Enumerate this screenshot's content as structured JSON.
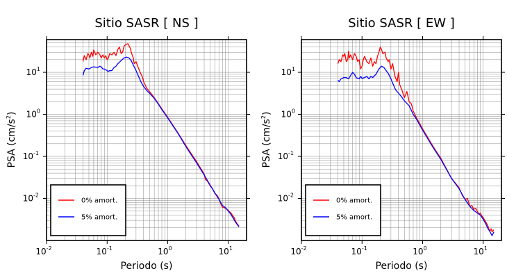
{
  "chart_data": [
    {
      "type": "line",
      "title": "Sitio SASR [ NS ]",
      "xlabel": "Periodo (s)",
      "ylabel": "PSA (cm/s2)",
      "x_scale": "log",
      "y_scale": "log",
      "xlim": [
        0.01,
        20
      ],
      "ylim": [
        0.001,
        60
      ],
      "xticks": [
        0.01,
        0.1,
        1,
        10
      ],
      "yticks": [
        0.01,
        0.1,
        1,
        10
      ],
      "grid": true,
      "legend_position": "lower-left",
      "series": [
        {
          "name": "0% amort.",
          "color": "#ff0000",
          "points": [
            [
              0.04,
              18
            ],
            [
              0.042,
              25
            ],
            [
              0.045,
              20
            ],
            [
              0.048,
              28
            ],
            [
              0.05,
              26
            ],
            [
              0.052,
              22
            ],
            [
              0.055,
              30
            ],
            [
              0.058,
              24
            ],
            [
              0.06,
              34
            ],
            [
              0.065,
              26
            ],
            [
              0.07,
              30
            ],
            [
              0.075,
              27
            ],
            [
              0.08,
              22
            ],
            [
              0.085,
              26
            ],
            [
              0.09,
              22
            ],
            [
              0.095,
              25
            ],
            [
              0.1,
              20
            ],
            [
              0.105,
              22
            ],
            [
              0.11,
              28
            ],
            [
              0.12,
              26
            ],
            [
              0.13,
              30
            ],
            [
              0.14,
              25
            ],
            [
              0.15,
              35
            ],
            [
              0.16,
              40
            ],
            [
              0.17,
              28
            ],
            [
              0.18,
              30
            ],
            [
              0.19,
              42
            ],
            [
              0.2,
              45
            ],
            [
              0.22,
              48
            ],
            [
              0.24,
              38
            ],
            [
              0.25,
              30
            ],
            [
              0.27,
              22
            ],
            [
              0.28,
              16
            ],
            [
              0.3,
              18
            ],
            [
              0.32,
              14
            ],
            [
              0.35,
              10
            ],
            [
              0.38,
              8
            ],
            [
              0.4,
              6
            ],
            [
              0.45,
              4.2
            ],
            [
              0.5,
              3.5
            ],
            [
              0.6,
              2.5
            ],
            [
              0.7,
              1.8
            ],
            [
              0.8,
              1.35
            ],
            [
              1.0,
              0.85
            ],
            [
              1.5,
              0.35
            ],
            [
              2.0,
              0.18
            ],
            [
              3.0,
              0.075
            ],
            [
              4.0,
              0.038
            ],
            [
              4.2,
              0.028
            ],
            [
              4.5,
              0.026
            ],
            [
              5.0,
              0.02
            ],
            [
              5.5,
              0.017
            ],
            [
              6.0,
              0.013
            ],
            [
              6.5,
              0.012
            ],
            [
              7.0,
              0.01
            ],
            [
              7.5,
              0.0075
            ],
            [
              8.0,
              0.0062
            ],
            [
              8.5,
              0.006
            ],
            [
              9.0,
              0.0058
            ],
            [
              9.5,
              0.0055
            ],
            [
              10,
              0.0052
            ],
            [
              11,
              0.0045
            ],
            [
              12,
              0.0038
            ],
            [
              12.5,
              0.0035
            ],
            [
              13,
              0.003
            ],
            [
              14,
              0.0025
            ],
            [
              15,
              0.0022
            ]
          ]
        },
        {
          "name": "5% amort.",
          "color": "#0000ff",
          "points": [
            [
              0.04,
              8.5
            ],
            [
              0.042,
              11
            ],
            [
              0.045,
              12.5
            ],
            [
              0.05,
              12
            ],
            [
              0.055,
              13
            ],
            [
              0.06,
              13.5
            ],
            [
              0.07,
              13
            ],
            [
              0.075,
              14
            ],
            [
              0.08,
              13.5
            ],
            [
              0.085,
              12
            ],
            [
              0.09,
              12
            ],
            [
              0.1,
              11
            ],
            [
              0.105,
              10.5
            ],
            [
              0.11,
              11
            ],
            [
              0.12,
              11
            ],
            [
              0.13,
              13
            ],
            [
              0.14,
              14
            ],
            [
              0.15,
              16
            ],
            [
              0.17,
              19
            ],
            [
              0.19,
              22
            ],
            [
              0.21,
              23
            ],
            [
              0.23,
              22
            ],
            [
              0.25,
              19
            ],
            [
              0.27,
              15
            ],
            [
              0.3,
              11
            ],
            [
              0.33,
              8
            ],
            [
              0.36,
              6
            ],
            [
              0.4,
              4.6
            ],
            [
              0.45,
              3.7
            ],
            [
              0.5,
              3.2
            ],
            [
              0.6,
              2.4
            ],
            [
              0.7,
              1.75
            ],
            [
              0.8,
              1.3
            ],
            [
              1.0,
              0.82
            ],
            [
              1.5,
              0.34
            ],
            [
              2.0,
              0.17
            ],
            [
              3.0,
              0.07
            ],
            [
              4.0,
              0.036
            ],
            [
              5.0,
              0.021
            ],
            [
              6.0,
              0.0135
            ],
            [
              7.0,
              0.0095
            ],
            [
              8.0,
              0.0068
            ],
            [
              9.0,
              0.006
            ],
            [
              10,
              0.005
            ],
            [
              11,
              0.0042
            ],
            [
              12,
              0.0034
            ],
            [
              13,
              0.0028
            ],
            [
              14,
              0.0024
            ],
            [
              15,
              0.0021
            ]
          ]
        }
      ]
    },
    {
      "type": "line",
      "title": "Sitio SASR [ EW ]",
      "xlabel": "Periodo (s)",
      "ylabel": "PSA (cm/s2)",
      "x_scale": "log",
      "y_scale": "log",
      "xlim": [
        0.01,
        20
      ],
      "ylim": [
        0.001,
        60
      ],
      "xticks": [
        0.01,
        0.1,
        1,
        10
      ],
      "yticks": [
        0.01,
        0.1,
        1,
        10
      ],
      "grid": true,
      "legend_position": "lower-left",
      "series": [
        {
          "name": "0% amort.",
          "color": "#ff0000",
          "points": [
            [
              0.04,
              16
            ],
            [
              0.042,
              20
            ],
            [
              0.045,
              18
            ],
            [
              0.048,
              26
            ],
            [
              0.05,
              24
            ],
            [
              0.052,
              28
            ],
            [
              0.055,
              18
            ],
            [
              0.058,
              20
            ],
            [
              0.06,
              32
            ],
            [
              0.062,
              22
            ],
            [
              0.065,
              26
            ],
            [
              0.07,
              20
            ],
            [
              0.075,
              28
            ],
            [
              0.08,
              24
            ],
            [
              0.085,
              18
            ],
            [
              0.09,
              20
            ],
            [
              0.095,
              12
            ],
            [
              0.1,
              14
            ],
            [
              0.105,
              20
            ],
            [
              0.11,
              24
            ],
            [
              0.12,
              18
            ],
            [
              0.13,
              16
            ],
            [
              0.14,
              22
            ],
            [
              0.15,
              14
            ],
            [
              0.16,
              18
            ],
            [
              0.17,
              16
            ],
            [
              0.18,
              24
            ],
            [
              0.19,
              30
            ],
            [
              0.2,
              40
            ],
            [
              0.21,
              35
            ],
            [
              0.22,
              28
            ],
            [
              0.24,
              30
            ],
            [
              0.25,
              22
            ],
            [
              0.27,
              18
            ],
            [
              0.28,
              20
            ],
            [
              0.3,
              12
            ],
            [
              0.32,
              16
            ],
            [
              0.35,
              8
            ],
            [
              0.38,
              6
            ],
            [
              0.4,
              10
            ],
            [
              0.42,
              5
            ],
            [
              0.45,
              4
            ],
            [
              0.5,
              2.5
            ],
            [
              0.55,
              3.5
            ],
            [
              0.6,
              2
            ],
            [
              0.65,
              1.8
            ],
            [
              0.7,
              1.2
            ],
            [
              0.8,
              0.8
            ],
            [
              0.9,
              0.6
            ],
            [
              1.0,
              0.45
            ],
            [
              1.5,
              0.17
            ],
            [
              2.0,
              0.09
            ],
            [
              3.0,
              0.03
            ],
            [
              4.0,
              0.018
            ],
            [
              4.5,
              0.012
            ],
            [
              5.0,
              0.0095
            ],
            [
              5.5,
              0.01
            ],
            [
              6.0,
              0.0065
            ],
            [
              6.5,
              0.0068
            ],
            [
              7.0,
              0.0055
            ],
            [
              7.5,
              0.0058
            ],
            [
              8.0,
              0.005
            ],
            [
              8.5,
              0.0042
            ],
            [
              9.0,
              0.0045
            ],
            [
              9.5,
              0.0038
            ],
            [
              10,
              0.0035
            ],
            [
              11,
              0.0028
            ],
            [
              12,
              0.0022
            ],
            [
              12.5,
              0.0018
            ],
            [
              13,
              0.0017
            ],
            [
              13.5,
              0.0019
            ],
            [
              14,
              0.0016
            ],
            [
              15,
              0.0018
            ]
          ]
        },
        {
          "name": "5% amort.",
          "color": "#0000ff",
          "points": [
            [
              0.04,
              6.5
            ],
            [
              0.042,
              6
            ],
            [
              0.045,
              7
            ],
            [
              0.05,
              7.5
            ],
            [
              0.055,
              7.5
            ],
            [
              0.06,
              7
            ],
            [
              0.07,
              10
            ],
            [
              0.075,
              9
            ],
            [
              0.08,
              7.5
            ],
            [
              0.09,
              7
            ],
            [
              0.095,
              8
            ],
            [
              0.1,
              7.2
            ],
            [
              0.11,
              7.5
            ],
            [
              0.12,
              8
            ],
            [
              0.13,
              7
            ],
            [
              0.14,
              8
            ],
            [
              0.15,
              7.5
            ],
            [
              0.17,
              9
            ],
            [
              0.19,
              12
            ],
            [
              0.21,
              14
            ],
            [
              0.23,
              13
            ],
            [
              0.25,
              11
            ],
            [
              0.27,
              9.5
            ],
            [
              0.3,
              7
            ],
            [
              0.33,
              5
            ],
            [
              0.36,
              3.8
            ],
            [
              0.4,
              3.2
            ],
            [
              0.45,
              2.6
            ],
            [
              0.5,
              2.1
            ],
            [
              0.6,
              1.6
            ],
            [
              0.7,
              1.0
            ],
            [
              0.8,
              0.75
            ],
            [
              0.9,
              0.55
            ],
            [
              1.0,
              0.42
            ],
            [
              1.5,
              0.16
            ],
            [
              2.0,
              0.085
            ],
            [
              3.0,
              0.03
            ],
            [
              4.0,
              0.017
            ],
            [
              5.0,
              0.0095
            ],
            [
              6.0,
              0.0065
            ],
            [
              7.0,
              0.0052
            ],
            [
              8.0,
              0.0045
            ],
            [
              9.0,
              0.004
            ],
            [
              10,
              0.0032
            ],
            [
              11,
              0.0025
            ],
            [
              12,
              0.0019
            ],
            [
              13,
              0.0016
            ],
            [
              14,
              0.0013
            ],
            [
              15,
              0.0016
            ]
          ]
        }
      ]
    }
  ]
}
